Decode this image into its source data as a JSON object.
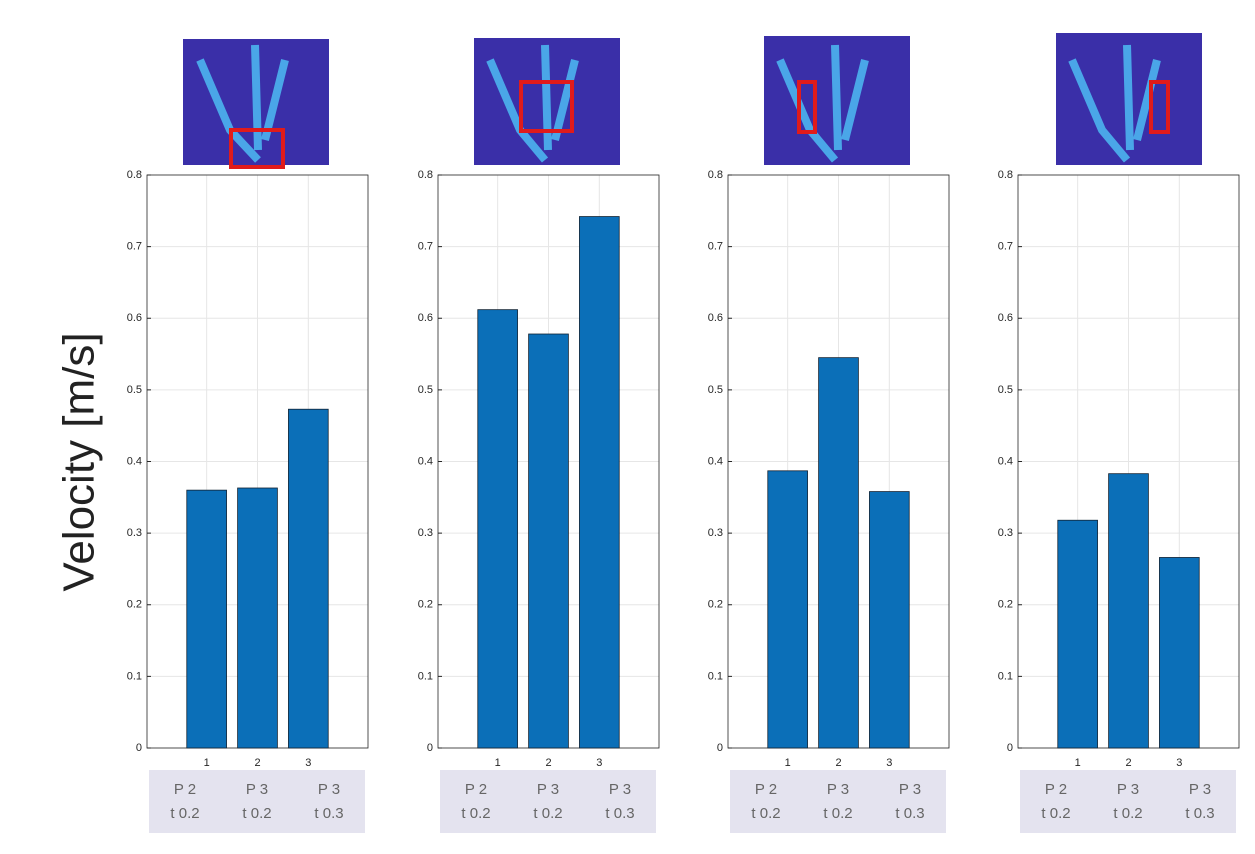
{
  "ylabel": "Velocity [m/s]",
  "chart_data": [
    {
      "type": "bar",
      "categories": [
        "1",
        "2",
        "3"
      ],
      "values": [
        0.36,
        0.363,
        0.473
      ],
      "color": "#0b6fb8",
      "ylim": [
        0,
        0.8
      ],
      "yticks": [
        0,
        0.1,
        0.2,
        0.3,
        0.4,
        0.5,
        0.6,
        0.7,
        0.8
      ],
      "grid": true,
      "annotations": [
        [
          "P 2",
          "t 0.2"
        ],
        [
          "P 3",
          "t 0.2"
        ],
        [
          "P 3",
          "t 0.3"
        ]
      ]
    },
    {
      "type": "bar",
      "categories": [
        "1",
        "2",
        "3"
      ],
      "values": [
        0.612,
        0.578,
        0.742
      ],
      "color": "#0b6fb8",
      "ylim": [
        0,
        0.8
      ],
      "yticks": [
        0,
        0.1,
        0.2,
        0.3,
        0.4,
        0.5,
        0.6,
        0.7,
        0.8
      ],
      "grid": true,
      "annotations": [
        [
          "P 2",
          "t 0.2"
        ],
        [
          "P 3",
          "t 0.2"
        ],
        [
          "P 3",
          "t 0.3"
        ]
      ]
    },
    {
      "type": "bar",
      "categories": [
        "1",
        "2",
        "3"
      ],
      "values": [
        0.387,
        0.545,
        0.358
      ],
      "color": "#0b6fb8",
      "ylim": [
        0,
        0.8
      ],
      "yticks": [
        0,
        0.1,
        0.2,
        0.3,
        0.4,
        0.5,
        0.6,
        0.7,
        0.8
      ],
      "grid": true,
      "annotations": [
        [
          "P 2",
          "t 0.2"
        ],
        [
          "P 3",
          "t 0.2"
        ],
        [
          "P 3",
          "t 0.3"
        ]
      ]
    },
    {
      "type": "bar",
      "categories": [
        "1",
        "2",
        "3"
      ],
      "values": [
        0.318,
        0.383,
        0.266
      ],
      "color": "#0b6fb8",
      "ylim": [
        0,
        0.8
      ],
      "yticks": [
        0,
        0.1,
        0.2,
        0.3,
        0.4,
        0.5,
        0.6,
        0.7,
        0.8
      ],
      "grid": true,
      "annotations": [
        [
          "P 2",
          "t 0.2"
        ],
        [
          "P 3",
          "t 0.2"
        ],
        [
          "P 3",
          "t 0.3"
        ]
      ]
    }
  ]
}
